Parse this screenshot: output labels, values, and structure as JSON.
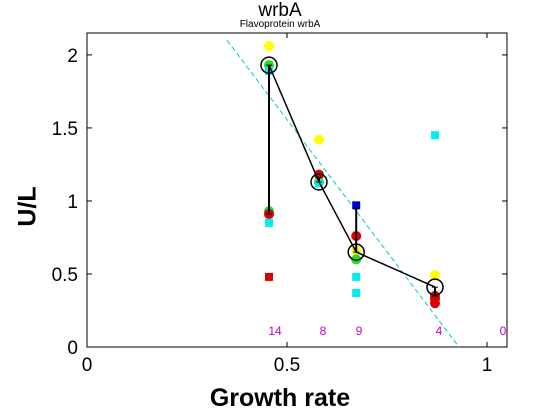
{
  "chart_data": {
    "type": "scatter",
    "title": "wrbA",
    "subtitle": "Flavoprotein wrbA",
    "xlabel": "Growth rate",
    "ylabel": "U/L",
    "xlim": [
      0,
      1.05
    ],
    "ylim": [
      0,
      2.15
    ],
    "xticks": [
      0,
      0.5,
      1
    ],
    "xtick_labels": [
      "0",
      "0.5",
      "1"
    ],
    "yticks": [
      0,
      0.5,
      1,
      1.5,
      2
    ],
    "ytick_labels": [
      "0",
      "0.5",
      "1",
      "1.5",
      "2"
    ],
    "grid": false,
    "colors": {
      "yellow": "#ffff00",
      "red": "#dd0000",
      "green": "#22dd22",
      "cyan": "#00eeee",
      "blue": "#0000cc",
      "count_text": "#cc00cc",
      "mean_line": "#000000",
      "fit_line": "#00cccc"
    },
    "points": [
      {
        "x": 0.455,
        "y": 2.06,
        "marker": "circle",
        "color": "yellow"
      },
      {
        "x": 0.455,
        "y": 1.93,
        "marker": "circle",
        "color": "green"
      },
      {
        "x": 0.455,
        "y": 1.89,
        "marker": "square",
        "color": "cyan"
      },
      {
        "x": 0.455,
        "y": 0.93,
        "marker": "circle",
        "color": "green"
      },
      {
        "x": 0.455,
        "y": 0.91,
        "marker": "circle",
        "color": "red"
      },
      {
        "x": 0.455,
        "y": 0.85,
        "marker": "square",
        "color": "cyan"
      },
      {
        "x": 0.455,
        "y": 0.48,
        "marker": "square",
        "color": "red"
      },
      {
        "x": 0.58,
        "y": 1.42,
        "marker": "circle",
        "color": "yellow"
      },
      {
        "x": 0.58,
        "y": 1.18,
        "marker": "circle",
        "color": "red"
      },
      {
        "x": 0.58,
        "y": 1.13,
        "marker": "circle",
        "color": "green"
      },
      {
        "x": 0.58,
        "y": 1.12,
        "marker": "square",
        "color": "cyan"
      },
      {
        "x": 0.673,
        "y": 0.97,
        "marker": "square",
        "color": "blue"
      },
      {
        "x": 0.673,
        "y": 0.76,
        "marker": "circle",
        "color": "red"
      },
      {
        "x": 0.673,
        "y": 0.66,
        "marker": "circle",
        "color": "yellow"
      },
      {
        "x": 0.673,
        "y": 0.6,
        "marker": "circle",
        "color": "green"
      },
      {
        "x": 0.673,
        "y": 0.48,
        "marker": "square",
        "color": "cyan"
      },
      {
        "x": 0.673,
        "y": 0.37,
        "marker": "square",
        "color": "cyan"
      },
      {
        "x": 0.87,
        "y": 1.45,
        "marker": "square",
        "color": "cyan"
      },
      {
        "x": 0.87,
        "y": 0.49,
        "marker": "circle",
        "color": "yellow"
      },
      {
        "x": 0.87,
        "y": 0.35,
        "marker": "circle",
        "color": "red"
      },
      {
        "x": 0.87,
        "y": 0.33,
        "marker": "circle",
        "color": "red"
      },
      {
        "x": 0.87,
        "y": 0.3,
        "marker": "circle",
        "color": "red"
      }
    ],
    "mean_line": [
      {
        "x": 0.455,
        "y": 1.93
      },
      {
        "x": 0.58,
        "y": 1.13
      },
      {
        "x": 0.673,
        "y": 0.65
      },
      {
        "x": 0.87,
        "y": 0.41
      }
    ],
    "error_bars": [
      {
        "x": 0.455,
        "low": 0.91,
        "high": 1.93
      },
      {
        "x": 0.58,
        "low": 1.13,
        "high": 1.16
      },
      {
        "x": 0.673,
        "low": 0.65,
        "high": 0.95
      },
      {
        "x": 0.87,
        "low": 0.35,
        "high": 0.41
      }
    ],
    "fit_line": [
      {
        "x": 0.35,
        "y": 2.1
      },
      {
        "x": 0.93,
        "y": 0.0
      }
    ],
    "counts": [
      {
        "x": 0.47,
        "label": "14"
      },
      {
        "x": 0.59,
        "label": "8"
      },
      {
        "x": 0.68,
        "label": "9"
      },
      {
        "x": 0.88,
        "label": "4"
      },
      {
        "x": 1.04,
        "label": "0"
      }
    ]
  }
}
